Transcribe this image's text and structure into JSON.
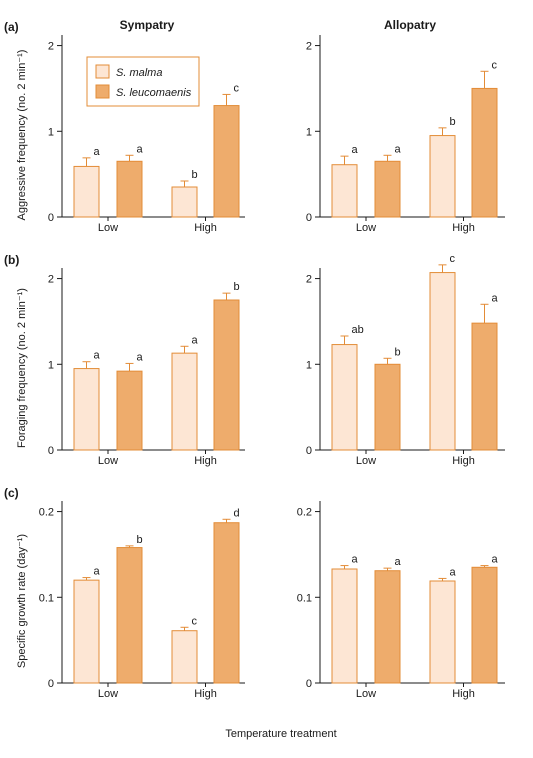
{
  "figure": {
    "columns": [
      "Sympatry",
      "Allopatry"
    ],
    "xlabel": "Temperature treatment",
    "categories": [
      "Low",
      "High"
    ],
    "legend": [
      "S. malma",
      "S. leucomaenis"
    ],
    "colors": {
      "malma": "#fde6d4",
      "leucomaenis": "#eeac6c",
      "edge": "#e38c37",
      "axis": "#1a1a1a",
      "error": "#e38c37"
    }
  },
  "chart_data": [
    {
      "type": "bar",
      "panel_label": "(a)",
      "column": "Sympatry",
      "ylabel": "Aggressive frequency (no. 2 min⁻¹)",
      "ylim": [
        0,
        2.1
      ],
      "yticks": [
        0,
        1,
        2
      ],
      "categories": [
        "Low",
        "High"
      ],
      "series": [
        {
          "name": "S. malma",
          "values": [
            0.59,
            0.35
          ],
          "errors": [
            0.1,
            0.07
          ],
          "letters": [
            "a",
            "b"
          ]
        },
        {
          "name": "S. leucomaenis",
          "values": [
            0.65,
            1.3
          ],
          "errors": [
            0.07,
            0.13
          ],
          "letters": [
            "a",
            "c"
          ]
        }
      ]
    },
    {
      "type": "bar",
      "panel_label": "",
      "column": "Allopatry",
      "ylabel": "",
      "ylim": [
        0,
        2.1
      ],
      "yticks": [
        0,
        1,
        2
      ],
      "categories": [
        "Low",
        "High"
      ],
      "series": [
        {
          "name": "S. malma",
          "values": [
            0.61,
            0.95
          ],
          "errors": [
            0.1,
            0.09
          ],
          "letters": [
            "a",
            "b"
          ]
        },
        {
          "name": "S. leucomaenis",
          "values": [
            0.65,
            1.5
          ],
          "errors": [
            0.07,
            0.2
          ],
          "letters": [
            "a",
            "c"
          ]
        }
      ]
    },
    {
      "type": "bar",
      "panel_label": "(b)",
      "column": "Sympatry",
      "ylabel": "Foraging frequency (no. 2 min⁻¹)",
      "ylim": [
        0,
        2.1
      ],
      "yticks": [
        0,
        1,
        2
      ],
      "categories": [
        "Low",
        "High"
      ],
      "series": [
        {
          "name": "S. malma",
          "values": [
            0.95,
            1.13
          ],
          "errors": [
            0.08,
            0.08
          ],
          "letters": [
            "a",
            "a"
          ]
        },
        {
          "name": "S. leucomaenis",
          "values": [
            0.92,
            1.75
          ],
          "errors": [
            0.09,
            0.08
          ],
          "letters": [
            "a",
            "b"
          ]
        }
      ]
    },
    {
      "type": "bar",
      "panel_label": "",
      "column": "Allopatry",
      "ylabel": "",
      "ylim": [
        0,
        2.1
      ],
      "yticks": [
        0,
        1,
        2
      ],
      "categories": [
        "Low",
        "High"
      ],
      "series": [
        {
          "name": "S. malma",
          "values": [
            1.23,
            2.07
          ],
          "errors": [
            0.1,
            0.09
          ],
          "letters": [
            "ab",
            "c"
          ]
        },
        {
          "name": "S. leucomaenis",
          "values": [
            1.0,
            1.48
          ],
          "errors": [
            0.07,
            0.22
          ],
          "letters": [
            "b",
            "a"
          ]
        }
      ]
    },
    {
      "type": "bar",
      "panel_label": "(c)",
      "column": "Sympatry",
      "ylabel": "Specific growth rate (day⁻¹)",
      "ylim": [
        0,
        0.21
      ],
      "yticks": [
        0,
        0.1,
        0.2
      ],
      "categories": [
        "Low",
        "High"
      ],
      "series": [
        {
          "name": "S. malma",
          "values": [
            0.12,
            0.061
          ],
          "errors": [
            0.003,
            0.004
          ],
          "letters": [
            "a",
            "c"
          ]
        },
        {
          "name": "S. leucomaenis",
          "values": [
            0.158,
            0.187
          ],
          "errors": [
            0.002,
            0.004
          ],
          "letters": [
            "b",
            "d"
          ]
        }
      ]
    },
    {
      "type": "bar",
      "panel_label": "",
      "column": "Allopatry",
      "ylabel": "",
      "ylim": [
        0,
        0.21
      ],
      "yticks": [
        0,
        0.1,
        0.2
      ],
      "categories": [
        "Low",
        "High"
      ],
      "series": [
        {
          "name": "S. malma",
          "values": [
            0.133,
            0.119
          ],
          "errors": [
            0.004,
            0.003
          ],
          "letters": [
            "a",
            "a"
          ]
        },
        {
          "name": "S. leucomaenis",
          "values": [
            0.131,
            0.135
          ],
          "errors": [
            0.003,
            0.002
          ],
          "letters": [
            "a",
            "a"
          ]
        }
      ]
    }
  ]
}
